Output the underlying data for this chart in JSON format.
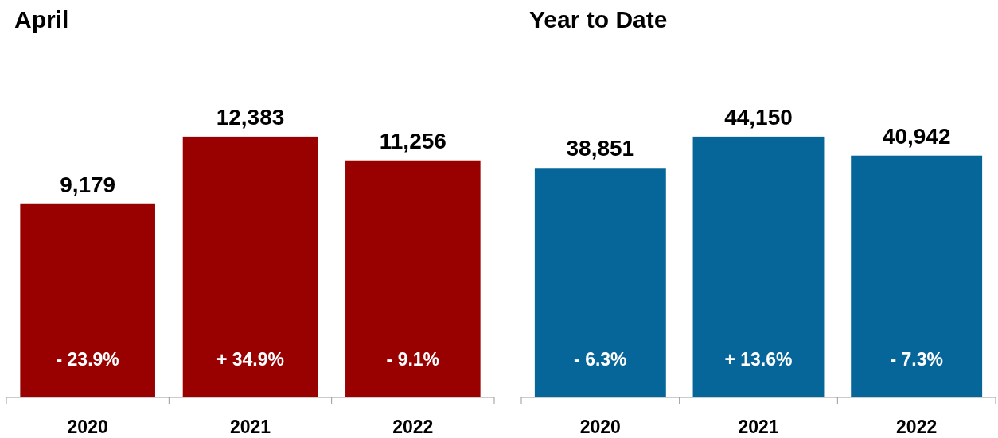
{
  "chart_data": [
    {
      "type": "bar",
      "title": "April",
      "categories": [
        "2020",
        "2021",
        "2022"
      ],
      "values": [
        9179,
        12383,
        11256
      ],
      "value_labels": [
        "9,179",
        "12,383",
        "11,256"
      ],
      "color": "#990000",
      "annotations": [
        "- 23.9%",
        "+ 34.9%",
        "- 9.1%"
      ]
    },
    {
      "type": "bar",
      "title": "Year to Date",
      "categories": [
        "2020",
        "2021",
        "2022"
      ],
      "values": [
        38851,
        44150,
        40942
      ],
      "value_labels": [
        "38,851",
        "44,150",
        "40,942"
      ],
      "color": "#066699",
      "annotations": [
        "- 6.3%",
        "+ 13.6%",
        "- 7.3%"
      ]
    }
  ]
}
